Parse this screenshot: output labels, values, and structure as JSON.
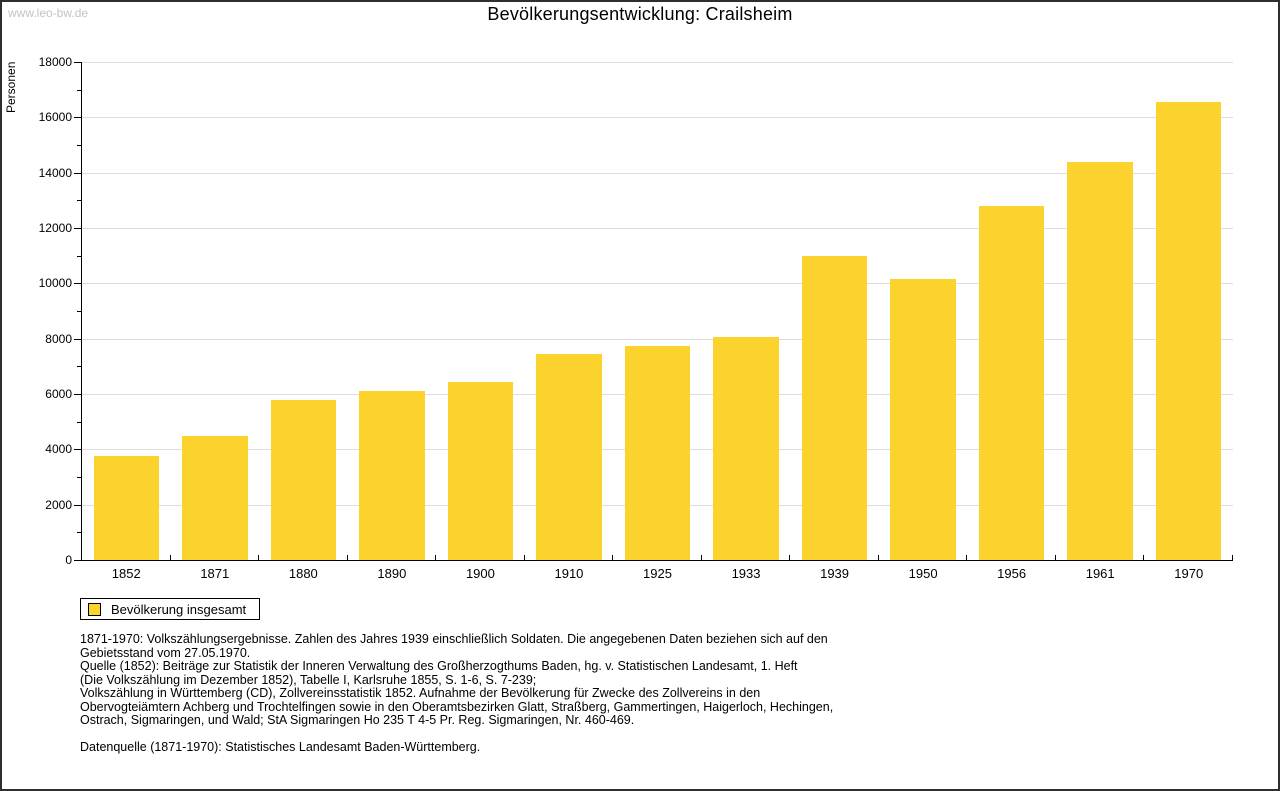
{
  "watermark": "www.leo-bw.de",
  "header": {
    "title": "Bevölkerungsentwicklung: Crailsheim"
  },
  "chart_data": {
    "type": "bar",
    "title": "Bevölkerungsentwicklung: Crailsheim",
    "xlabel": "",
    "ylabel": "Personen",
    "ylim": [
      0,
      18000
    ],
    "ytick_step": 2000,
    "yminor_step": 1000,
    "grid": true,
    "bar_color": "#FCD32D",
    "categories": [
      "1852",
      "1871",
      "1880",
      "1890",
      "1900",
      "1910",
      "1925",
      "1933",
      "1939",
      "1950",
      "1956",
      "1961",
      "1970"
    ],
    "series": [
      {
        "name": "Bevölkerung insgesamt",
        "values": [
          3750,
          4500,
          5800,
          6100,
          6450,
          7450,
          7750,
          8050,
          11000,
          10150,
          12800,
          14400,
          16550
        ]
      }
    ],
    "legend_position": "bottom-left"
  },
  "legend": {
    "label": "Bevölkerung insgesamt",
    "swatch_color": "#FCD32D"
  },
  "notes": [
    "1871-1970: Volkszählungsergebnisse. Zahlen des Jahres 1939 einschließlich Soldaten. Die angegebenen Daten beziehen sich auf den",
    "Gebietsstand vom 27.05.1970.",
    "Quelle (1852): Beiträge zur Statistik der Inneren Verwaltung des Großherzogthums Baden, hg. v. Statistischen Landesamt, 1. Heft",
    "(Die Volkszählung im Dezember 1852), Tabelle I, Karlsruhe 1855, S. 1-6, S. 7-239;",
    "Volkszählung in Württemberg (CD), Zollvereinsstatistik 1852. Aufnahme der Bevölkerung für Zwecke des Zollvereins in den",
    "Obervogteiämtern Achberg und Trochtelfingen sowie in den Oberamtsbezirken Glatt, Straßberg, Gammertingen, Haigerloch, Hechingen,",
    "Ostrach, Sigmaringen, und Wald; StA Sigmaringen Ho 235 T 4-5 Pr. Reg. Sigmaringen, Nr. 460-469."
  ],
  "datasource": "Datenquelle (1871-1970): Statistisches Landesamt Baden-Württemberg."
}
